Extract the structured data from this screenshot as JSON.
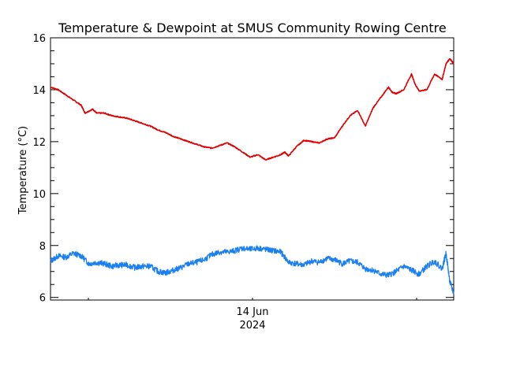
{
  "chart_data": {
    "type": "line",
    "title": "Temperature & Dewpoint at SMUS Community Rowing Centre",
    "ylabel": "Temperature (°C)",
    "xlabel": "",
    "x_tick": {
      "day": "14 Jun",
      "year": "2024"
    },
    "ylim": [
      5.9,
      16
    ],
    "y_ticks": [
      6,
      8,
      10,
      12,
      14,
      16
    ],
    "x_range_hours": [
      0,
      48
    ],
    "grid": false,
    "series": [
      {
        "color": "#e00000",
        "points": [
          [
            0,
            14.1
          ],
          [
            1,
            14.0
          ],
          [
            2,
            13.8
          ],
          [
            3,
            13.6
          ],
          [
            4,
            13.4
          ],
          [
            4.5,
            13.1
          ],
          [
            5.5,
            13.25
          ],
          [
            6,
            13.1
          ],
          [
            7,
            13.1
          ],
          [
            8,
            13.0
          ],
          [
            9,
            12.95
          ],
          [
            10,
            12.9
          ],
          [
            11,
            12.8
          ],
          [
            12,
            12.7
          ],
          [
            13,
            12.6
          ],
          [
            14,
            12.45
          ],
          [
            15,
            12.35
          ],
          [
            16,
            12.2
          ],
          [
            17,
            12.1
          ],
          [
            18,
            12.0
          ],
          [
            19,
            11.9
          ],
          [
            20,
            11.8
          ],
          [
            21,
            11.75
          ],
          [
            22,
            11.85
          ],
          [
            23,
            11.95
          ],
          [
            24,
            11.8
          ],
          [
            25,
            11.6
          ],
          [
            26,
            11.4
          ],
          [
            27,
            11.5
          ],
          [
            28,
            11.3
          ],
          [
            29,
            11.4
          ],
          [
            30,
            11.5
          ],
          [
            30.5,
            11.6
          ],
          [
            31,
            11.45
          ],
          [
            32,
            11.8
          ],
          [
            33,
            12.05
          ],
          [
            34,
            12.0
          ],
          [
            35,
            11.95
          ],
          [
            36,
            12.1
          ],
          [
            37,
            12.15
          ],
          [
            38,
            12.6
          ],
          [
            39,
            13.0
          ],
          [
            40,
            13.2
          ],
          [
            41,
            12.6
          ],
          [
            42,
            13.3
          ],
          [
            43,
            13.7
          ],
          [
            44,
            14.1
          ],
          [
            44.5,
            13.9
          ],
          [
            45,
            13.85
          ],
          [
            46,
            14.0
          ],
          [
            47,
            14.6
          ],
          [
            47.5,
            14.2
          ],
          [
            48,
            13.95
          ],
          [
            49,
            14.0
          ],
          [
            50,
            14.6
          ],
          [
            51,
            14.4
          ],
          [
            51.5,
            15.0
          ],
          [
            52,
            15.2
          ],
          [
            52.5,
            15.0
          ]
        ]
      },
      {
        "color": "#1a7ff0",
        "points": [
          [
            0,
            7.4
          ],
          [
            1,
            7.6
          ],
          [
            2,
            7.55
          ],
          [
            3,
            7.7
          ],
          [
            4,
            7.6
          ],
          [
            5,
            7.3
          ],
          [
            6,
            7.35
          ],
          [
            7,
            7.3
          ],
          [
            8,
            7.2
          ],
          [
            9,
            7.25
          ],
          [
            10,
            7.25
          ],
          [
            11,
            7.15
          ],
          [
            12,
            7.2
          ],
          [
            13,
            7.2
          ],
          [
            14,
            7.0
          ],
          [
            15,
            6.95
          ],
          [
            16,
            7.05
          ],
          [
            17,
            7.15
          ],
          [
            18,
            7.3
          ],
          [
            19,
            7.35
          ],
          [
            20,
            7.45
          ],
          [
            21,
            7.65
          ],
          [
            22,
            7.75
          ],
          [
            23,
            7.75
          ],
          [
            24,
            7.8
          ],
          [
            25,
            7.9
          ],
          [
            26,
            7.85
          ],
          [
            27,
            7.9
          ],
          [
            28,
            7.85
          ],
          [
            29,
            7.8
          ],
          [
            30,
            7.75
          ],
          [
            31,
            7.35
          ],
          [
            32,
            7.3
          ],
          [
            33,
            7.25
          ],
          [
            34,
            7.4
          ],
          [
            35,
            7.35
          ],
          [
            36,
            7.5
          ],
          [
            37,
            7.45
          ],
          [
            38,
            7.3
          ],
          [
            39,
            7.4
          ],
          [
            40,
            7.35
          ],
          [
            41,
            7.1
          ],
          [
            42,
            7.05
          ],
          [
            43,
            6.9
          ],
          [
            44,
            6.85
          ],
          [
            45,
            7.0
          ],
          [
            46,
            7.2
          ],
          [
            47,
            7.05
          ],
          [
            48,
            6.9
          ],
          [
            49,
            7.2
          ],
          [
            50,
            7.4
          ],
          [
            51,
            7.1
          ],
          [
            51.5,
            7.7
          ],
          [
            52,
            6.6
          ],
          [
            52.5,
            6.15
          ]
        ]
      }
    ]
  }
}
